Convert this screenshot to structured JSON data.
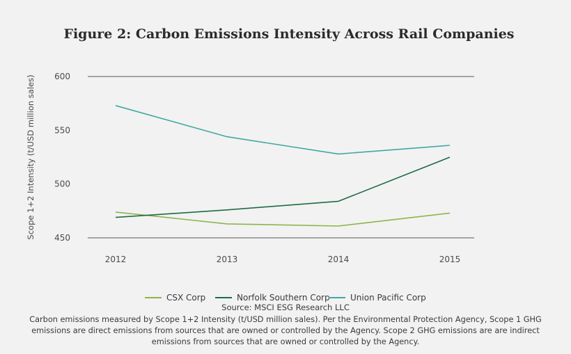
{
  "chart_data": {
    "type": "line",
    "title": "Figure 2: Carbon Emissions Intensity Across Rail Companies",
    "xlabel": "",
    "ylabel": "Scope 1+2 Intensity (t/USD million sales)",
    "categories": [
      "2012",
      "2013",
      "2014",
      "2015"
    ],
    "yticks": [
      450,
      500,
      550,
      600
    ],
    "ylim": [
      450,
      600
    ],
    "grid": "horizontal at 450 and 600",
    "legend_position": "bottom",
    "series": [
      {
        "name": "CSX Corp",
        "color": "#8db44a",
        "values": [
          474,
          463,
          461,
          473
        ]
      },
      {
        "name": "Norfolk Southern Corp",
        "color": "#1e6b45",
        "values": [
          469,
          476,
          484,
          525
        ]
      },
      {
        "name": "Union Pacific Corp",
        "color": "#3fa9a0",
        "values": [
          573,
          544,
          528,
          536
        ]
      }
    ]
  },
  "footer": {
    "source": "Source: MSCI ESG Research LLC",
    "note": "Carbon emissions measured by Scope 1+2 Intensity (t/USD million sales). Per the Environmental Protection Agency, Scope 1 GHG emissions are direct emissions from sources that are owned or controlled by the Agency. Scope 2 GHG emissions are are indirect emissions from sources that are owned or controlled by the Agency."
  }
}
